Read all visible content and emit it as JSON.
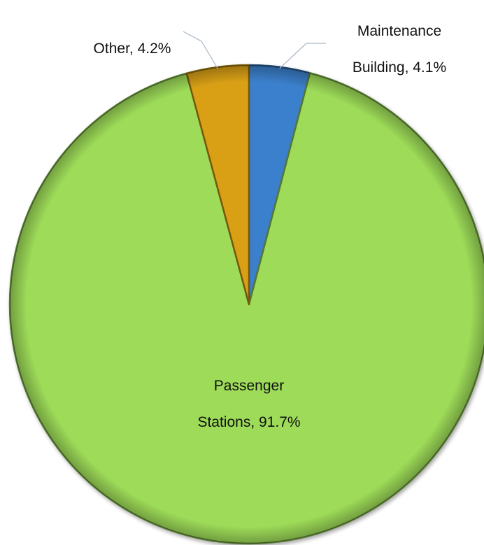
{
  "chart_data": {
    "type": "pie",
    "title": "",
    "slices": [
      {
        "label": "Maintenance Building",
        "value": 4.1,
        "display": "4.1%",
        "color": "#3a80cc",
        "line1": "Maintenance",
        "line2": "Building, 4.1%"
      },
      {
        "label": "Passenger Stations",
        "value": 91.7,
        "display": "91.7%",
        "color": "#9ddb58",
        "line1": "Passenger",
        "line2": "Stations, 91.7%"
      },
      {
        "label": "Other",
        "value": 4.2,
        "display": "4.2%",
        "color": "#d9a012",
        "line1": "",
        "line2": "Other, 4.2%"
      }
    ],
    "start_angle_deg": 0,
    "direction": "clockwise",
    "style": "3d-bevel",
    "legend": "none",
    "data_labels": "category, percentage"
  }
}
